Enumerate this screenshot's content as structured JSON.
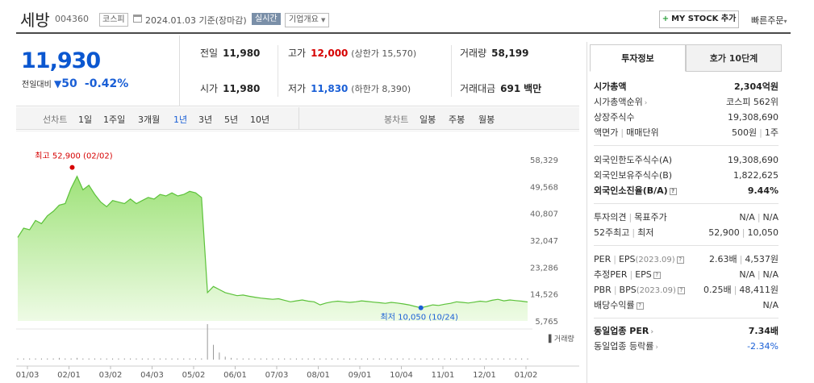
{
  "header": {
    "name": "세방",
    "code": "004360",
    "market": "코스피",
    "date": "2024.01.03 기준(장마감)",
    "realtime": "실시간",
    "company_info": "기업개요",
    "mystock": "MY STOCK 추가",
    "quick_order": "빠른주문"
  },
  "summary": {
    "price": "11,930",
    "change_label": "전일대비",
    "change": "50",
    "change_pct": "-0.42%",
    "prev_label": "전일",
    "prev": "11,980",
    "high_label": "고가",
    "high": "12,000",
    "upper_limit": "(상한가 15,570)",
    "volume_label": "거래량",
    "volume": "58,199",
    "open_label": "시가",
    "open": "11,980",
    "low_label": "저가",
    "low": "11,830",
    "lower_limit": "(하한가 8,390)",
    "amount_label": "거래대금",
    "amount": "691",
    "amount_unit": "백만"
  },
  "chart_tabs": {
    "line_label": "선차트",
    "periods": [
      "1일",
      "1주일",
      "3개월",
      "1년",
      "3년",
      "5년",
      "10년"
    ],
    "active_period": "1년",
    "candle_label": "봉차트",
    "candles": [
      "일봉",
      "주봉",
      "월봉"
    ]
  },
  "chart_data": {
    "type": "area",
    "y_ticks": [
      "58,329",
      "49,568",
      "40,807",
      "32,047",
      "23,286",
      "14,526",
      "5,765"
    ],
    "ylim": [
      5765,
      58329
    ],
    "x_ticks": [
      "01/03",
      "02/01",
      "03/02",
      "04/03",
      "05/02",
      "06/01",
      "07/03",
      "08/01",
      "09/01",
      "10/04",
      "11/01",
      "12/01",
      "01/02"
    ],
    "high_annotation": "최고 52,900 (02/02)",
    "low_annotation": "최저 10,050 (10/24)",
    "high": 52900,
    "low": 10050,
    "volume_label": "거래량",
    "series": [
      {
        "values": [
          33000,
          36000,
          35500,
          38500,
          37500,
          40000,
          41500,
          43500,
          44000,
          49000,
          52900,
          48500,
          50000,
          47000,
          44500,
          43000,
          45000,
          44500,
          44000,
          45500,
          44000,
          45000,
          46000,
          45500,
          47000,
          46500,
          47500,
          46500,
          47000,
          48000,
          47500,
          46000,
          15000,
          17000,
          16000,
          15000,
          14500,
          14000,
          14200,
          13800,
          13500,
          13200,
          13000,
          12800,
          13000,
          12500,
          12000,
          12300,
          12600,
          12200,
          12000,
          11000,
          11600,
          12000,
          12200,
          12000,
          11800,
          12000,
          12300,
          12100,
          11900,
          11700,
          11500,
          11800,
          11600,
          11300,
          11000,
          10500,
          10050,
          10500,
          11000,
          10800,
          11200,
          11500,
          12000,
          11800,
          11600,
          11900,
          12200,
          12000,
          12500,
          12800,
          12300,
          12600,
          12400,
          12200,
          11930
        ]
      }
    ],
    "volume": [
      2,
      2,
      2,
      2,
      2,
      2,
      2,
      3,
      2,
      2,
      3,
      2,
      2,
      2,
      2,
      2,
      2,
      2,
      2,
      2,
      2,
      2,
      2,
      2,
      2,
      2,
      2,
      2,
      2,
      2,
      2,
      2,
      60,
      25,
      12,
      5,
      3,
      2,
      2,
      2,
      2,
      2,
      2,
      2,
      2,
      2,
      2,
      2,
      2,
      2,
      2,
      2,
      2,
      2,
      2,
      2,
      2,
      2,
      2,
      2,
      2,
      2,
      2,
      2,
      2,
      2,
      2,
      2,
      2,
      2,
      2,
      2,
      2,
      2,
      2,
      2,
      2,
      2,
      2,
      2,
      2,
      2,
      2,
      2,
      2,
      2,
      2
    ]
  },
  "panel": {
    "tab_invest": "투자정보",
    "tab_hoga": "호가 10단계",
    "market_cap_label": "시가총액",
    "market_cap": "2,304억원",
    "cap_rank_label": "시가총액순위",
    "cap_rank": "코스피 562위",
    "shares_label": "상장주식수",
    "shares": "19,308,690",
    "par_label": "액면가",
    "unit_label": "매매단위",
    "par": "500원",
    "unit": "1주",
    "foreign_limit_label": "외국인한도주식수(A)",
    "foreign_limit": "19,308,690",
    "foreign_hold_label": "외국인보유주식수(B)",
    "foreign_hold": "1,822,625",
    "foreign_ratio_label": "외국인소진율(B/A)",
    "foreign_ratio": "9.44%",
    "opinion_label": "투자의견",
    "target_label": "목표주가",
    "opinion": "N/A",
    "target": "N/A",
    "w52_high_label": "52주최고",
    "w52_low_label": "최저",
    "w52_high": "52,900",
    "w52_low": "10,050",
    "per_label": "PER",
    "eps_label": "EPS",
    "per_period": "(2023.09)",
    "per": "2.63배",
    "eps": "4,537원",
    "est_per_label": "추정PER",
    "est_eps_label": "EPS",
    "est_per": "N/A",
    "est_eps": "N/A",
    "pbr_label": "PBR",
    "bps_label": "BPS",
    "pbr_period": "(2023.09)",
    "pbr": "0.25배",
    "bps": "48,411원",
    "div_label": "배당수익률",
    "div": "N/A",
    "sector_per_label": "동일업종 PER",
    "sector_per": "7.34배",
    "sector_rate_label": "동일업종 등락률",
    "sector_rate": "-2.34%"
  }
}
